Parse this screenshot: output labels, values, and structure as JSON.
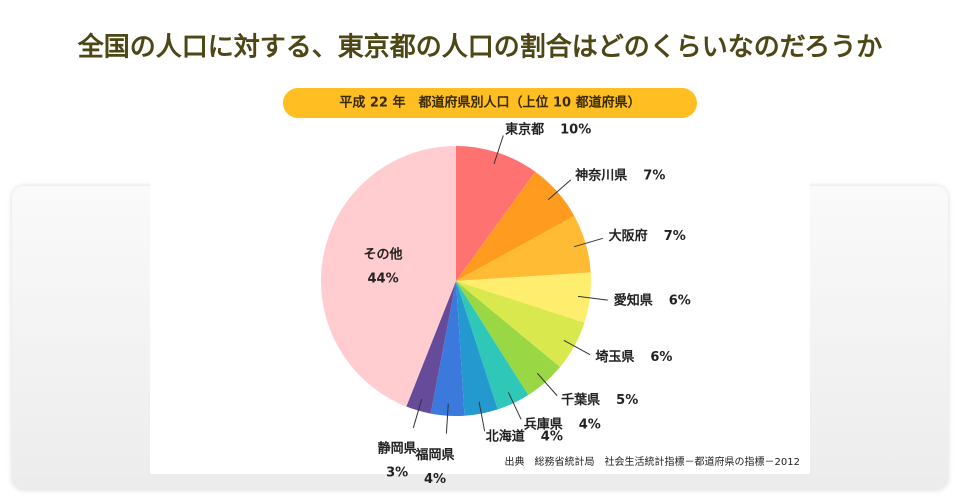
{
  "chart_data": {
    "type": "pie",
    "title": "全国の人口に対する、東京都の人口の割合はどのくらいなのだろうか",
    "subtitle": "平成 22 年　都道府県別人口（上位 10 都道府県）",
    "source": "出典　総務省統計局　社会生活統計指標－都道府県の指標－2012",
    "categories": [
      "東京都",
      "神奈川県",
      "大阪府",
      "愛知県",
      "埼玉県",
      "千葉県",
      "兵庫県",
      "北海道",
      "福岡県",
      "静岡県",
      "その他"
    ],
    "values": [
      10,
      7,
      7,
      6,
      6,
      5,
      4,
      4,
      4,
      3,
      44
    ],
    "value_labels": [
      "10%",
      "7%",
      "7%",
      "6%",
      "6%",
      "5%",
      "4%",
      "4%",
      "4%",
      "3%",
      "44%"
    ],
    "colors": [
      "#ff7272",
      "#ff9b1e",
      "#ffbb33",
      "#ffee6e",
      "#d9e84c",
      "#9ad744",
      "#2fc7b8",
      "#2499cf",
      "#3b79dc",
      "#664b9a",
      "#ffcdd0"
    ]
  }
}
